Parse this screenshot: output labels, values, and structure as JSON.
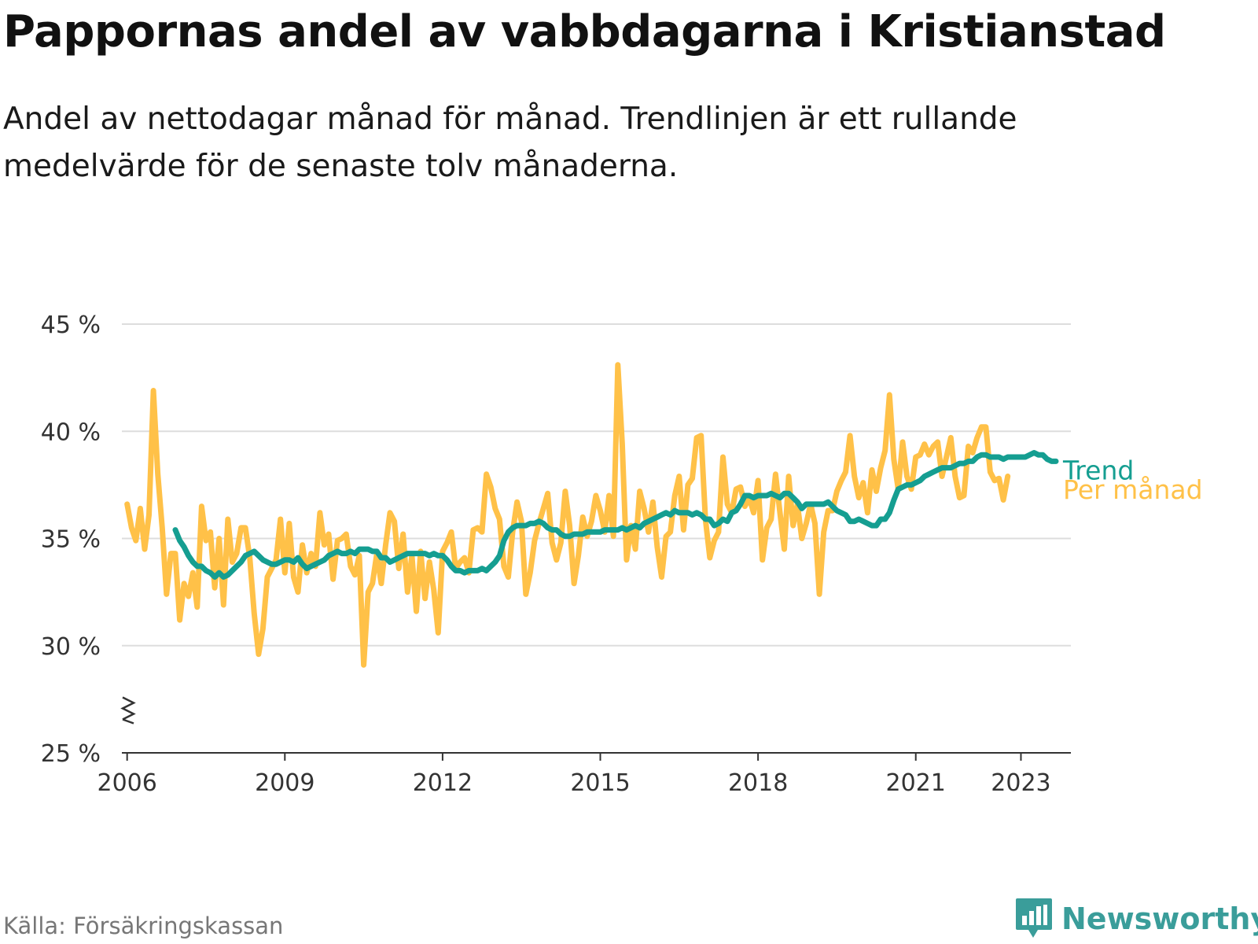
{
  "title": "Pappornas andel av vabbdagarna i Kristianstad",
  "subtitle": "Andel av nettodagar månad för månad. Trendlinjen är ett rullande medelvärde för de senaste tolv månaderna.",
  "source": "Källa: Försäkringskassan",
  "brand": {
    "name": "Newsworthy",
    "icon": "newsworthy-logo-icon",
    "color": "#3a9d9a"
  },
  "chart_data": {
    "type": "line",
    "x_axis": {
      "min": 2005.9,
      "max": 2023.95,
      "ticks": [
        2006,
        2009,
        2012,
        2015,
        2018,
        2021,
        2023
      ]
    },
    "y_axis": {
      "min": 25,
      "max": 45,
      "ticks": [
        25,
        30,
        35,
        40,
        45
      ],
      "tick_labels": [
        "25 %",
        "30 %",
        "35 %",
        "40 %",
        "45 %"
      ],
      "axis_break": true
    },
    "grid": true,
    "series": [
      {
        "name": "Per månad",
        "color": "#ffc148",
        "x_start": 2006.0,
        "x_step": 0.08333,
        "values": [
          36.6,
          35.5,
          34.9,
          36.4,
          34.5,
          36.1,
          41.9,
          38.0,
          35.5,
          32.4,
          34.3,
          34.3,
          31.2,
          32.9,
          32.3,
          33.4,
          31.8,
          36.5,
          34.9,
          35.3,
          32.7,
          35.0,
          31.9,
          35.9,
          33.9,
          34.3,
          35.5,
          35.5,
          34.1,
          31.5,
          29.6,
          30.8,
          33.2,
          33.6,
          34.0,
          35.9,
          33.4,
          35.7,
          33.2,
          32.5,
          34.7,
          33.4,
          34.3,
          33.7,
          36.2,
          34.7,
          35.2,
          33.1,
          34.9,
          35.0,
          35.2,
          33.7,
          33.3,
          34.2,
          29.1,
          32.5,
          32.9,
          34.3,
          32.9,
          34.7,
          36.2,
          35.8,
          33.6,
          35.2,
          32.5,
          34.2,
          31.6,
          34.4,
          32.2,
          33.9,
          32.6,
          30.6,
          34.4,
          34.8,
          35.3,
          33.6,
          33.9,
          34.1,
          33.4,
          35.4,
          35.5,
          35.3,
          38.0,
          37.4,
          36.4,
          35.9,
          33.7,
          33.2,
          35.3,
          36.7,
          35.8,
          32.4,
          33.4,
          34.9,
          35.7,
          36.4,
          37.1,
          34.8,
          34.0,
          34.8,
          37.2,
          35.6,
          32.9,
          34.2,
          36.0,
          35.1,
          35.8,
          37.0,
          36.3,
          35.3,
          37.0,
          35.1,
          43.1,
          39.4,
          34.0,
          35.6,
          34.5,
          37.2,
          36.4,
          35.3,
          36.7,
          34.6,
          33.2,
          35.1,
          35.3,
          37.0,
          37.9,
          35.4,
          37.5,
          37.8,
          39.7,
          39.8,
          35.9,
          34.1,
          34.9,
          35.3,
          38.8,
          36.6,
          36.2,
          37.3,
          37.4,
          36.5,
          36.9,
          36.2,
          37.7,
          34.0,
          35.5,
          35.9,
          38.0,
          36.2,
          34.5,
          37.9,
          35.6,
          36.6,
          35.0,
          35.7,
          36.6,
          35.7,
          32.4,
          35.3,
          36.3,
          36.3,
          37.2,
          37.7,
          38.1,
          39.8,
          37.9,
          36.9,
          37.6,
          36.2,
          38.2,
          37.2,
          38.3,
          39.1,
          41.7,
          38.7,
          37.3,
          39.5,
          37.9,
          37.3,
          38.8,
          38.9,
          39.4,
          38.9,
          39.3,
          39.5,
          37.9,
          38.8,
          39.7,
          37.9,
          36.9,
          37.0,
          39.3,
          39.0,
          39.7,
          40.2,
          40.2,
          38.1,
          37.7,
          37.8,
          36.8,
          37.9
        ]
      },
      {
        "name": "Trend",
        "color": "#159e91",
        "x_start": 2006.917,
        "x_step": 0.08333,
        "values": [
          35.4,
          34.9,
          34.6,
          34.2,
          33.9,
          33.7,
          33.7,
          33.5,
          33.4,
          33.2,
          33.4,
          33.2,
          33.3,
          33.5,
          33.7,
          33.9,
          34.2,
          34.3,
          34.4,
          34.2,
          34.0,
          33.9,
          33.8,
          33.8,
          33.9,
          34.0,
          34.0,
          33.9,
          34.1,
          33.8,
          33.6,
          33.7,
          33.8,
          33.9,
          34.0,
          34.2,
          34.3,
          34.4,
          34.3,
          34.3,
          34.4,
          34.3,
          34.5,
          34.5,
          34.5,
          34.4,
          34.4,
          34.1,
          34.1,
          33.9,
          34.0,
          34.1,
          34.2,
          34.3,
          34.3,
          34.3,
          34.3,
          34.3,
          34.2,
          34.3,
          34.2,
          34.2,
          34.0,
          33.7,
          33.5,
          33.5,
          33.4,
          33.5,
          33.5,
          33.5,
          33.6,
          33.5,
          33.7,
          33.9,
          34.2,
          34.9,
          35.3,
          35.5,
          35.6,
          35.6,
          35.6,
          35.7,
          35.7,
          35.8,
          35.7,
          35.5,
          35.4,
          35.4,
          35.2,
          35.1,
          35.1,
          35.2,
          35.2,
          35.2,
          35.3,
          35.3,
          35.3,
          35.3,
          35.4,
          35.4,
          35.4,
          35.4,
          35.5,
          35.4,
          35.5,
          35.6,
          35.5,
          35.7,
          35.8,
          35.9,
          36.0,
          36.1,
          36.2,
          36.1,
          36.3,
          36.2,
          36.2,
          36.2,
          36.1,
          36.2,
          36.1,
          35.9,
          35.9,
          35.6,
          35.7,
          35.9,
          35.8,
          36.2,
          36.3,
          36.6,
          37.0,
          37.0,
          36.9,
          37.0,
          37.0,
          37.0,
          37.1,
          37.0,
          36.9,
          37.1,
          37.1,
          36.9,
          36.7,
          36.4,
          36.6,
          36.6,
          36.6,
          36.6,
          36.6,
          36.7,
          36.5,
          36.3,
          36.2,
          36.1,
          35.8,
          35.8,
          35.9,
          35.8,
          35.7,
          35.6,
          35.6,
          35.9,
          35.9,
          36.2,
          36.8,
          37.3,
          37.4,
          37.5,
          37.5,
          37.6,
          37.7,
          37.9,
          38.0,
          38.1,
          38.2,
          38.3,
          38.3,
          38.3,
          38.4,
          38.5,
          38.5,
          38.6,
          38.6,
          38.8,
          38.9,
          38.9,
          38.8,
          38.8,
          38.8,
          38.7,
          38.8,
          38.8,
          38.8,
          38.8,
          38.8,
          38.9,
          39.0,
          38.9,
          38.9,
          38.7,
          38.6,
          38.6
        ]
      }
    ]
  }
}
